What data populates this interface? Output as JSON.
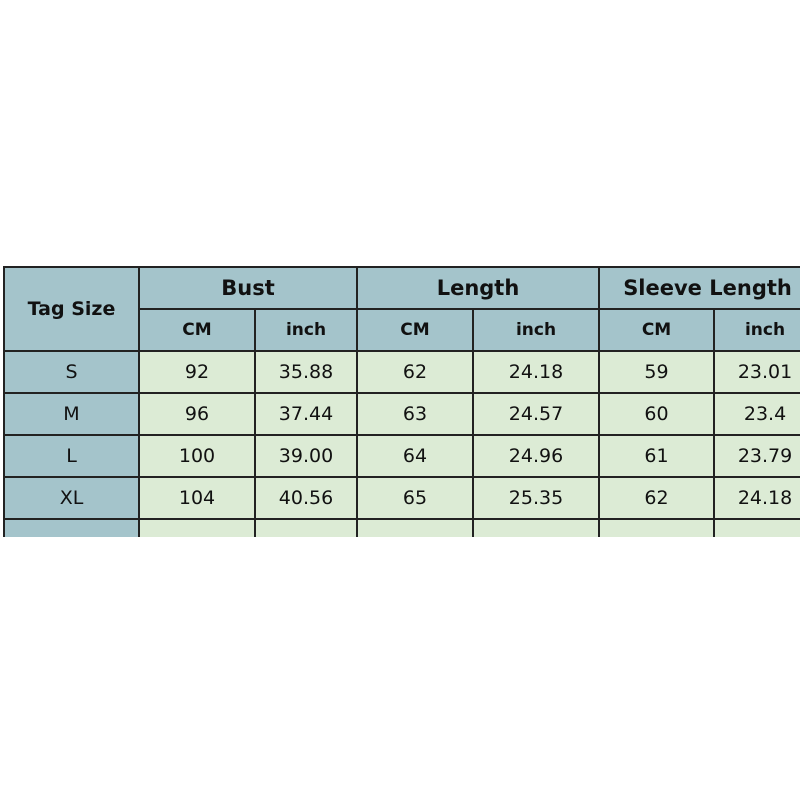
{
  "table": {
    "tag_header": "Tag Size",
    "groups": [
      "Bust",
      "Length",
      "Sleeve Length"
    ],
    "units": [
      "CM",
      "inch"
    ],
    "rows": [
      {
        "size": "S",
        "values": [
          "92",
          "35.88",
          "62",
          "24.18",
          "59",
          "23.01"
        ]
      },
      {
        "size": "M",
        "values": [
          "96",
          "37.44",
          "63",
          "24.57",
          "60",
          "23.4"
        ]
      },
      {
        "size": "L",
        "values": [
          "100",
          "39.00",
          "64",
          "24.96",
          "61",
          "23.79"
        ]
      },
      {
        "size": "XL",
        "values": [
          "104",
          "40.56",
          "65",
          "25.35",
          "62",
          "24.18"
        ]
      }
    ],
    "colors": {
      "header": "#a4c4cb",
      "cell": "#dcebd5",
      "border": "#222222"
    }
  }
}
